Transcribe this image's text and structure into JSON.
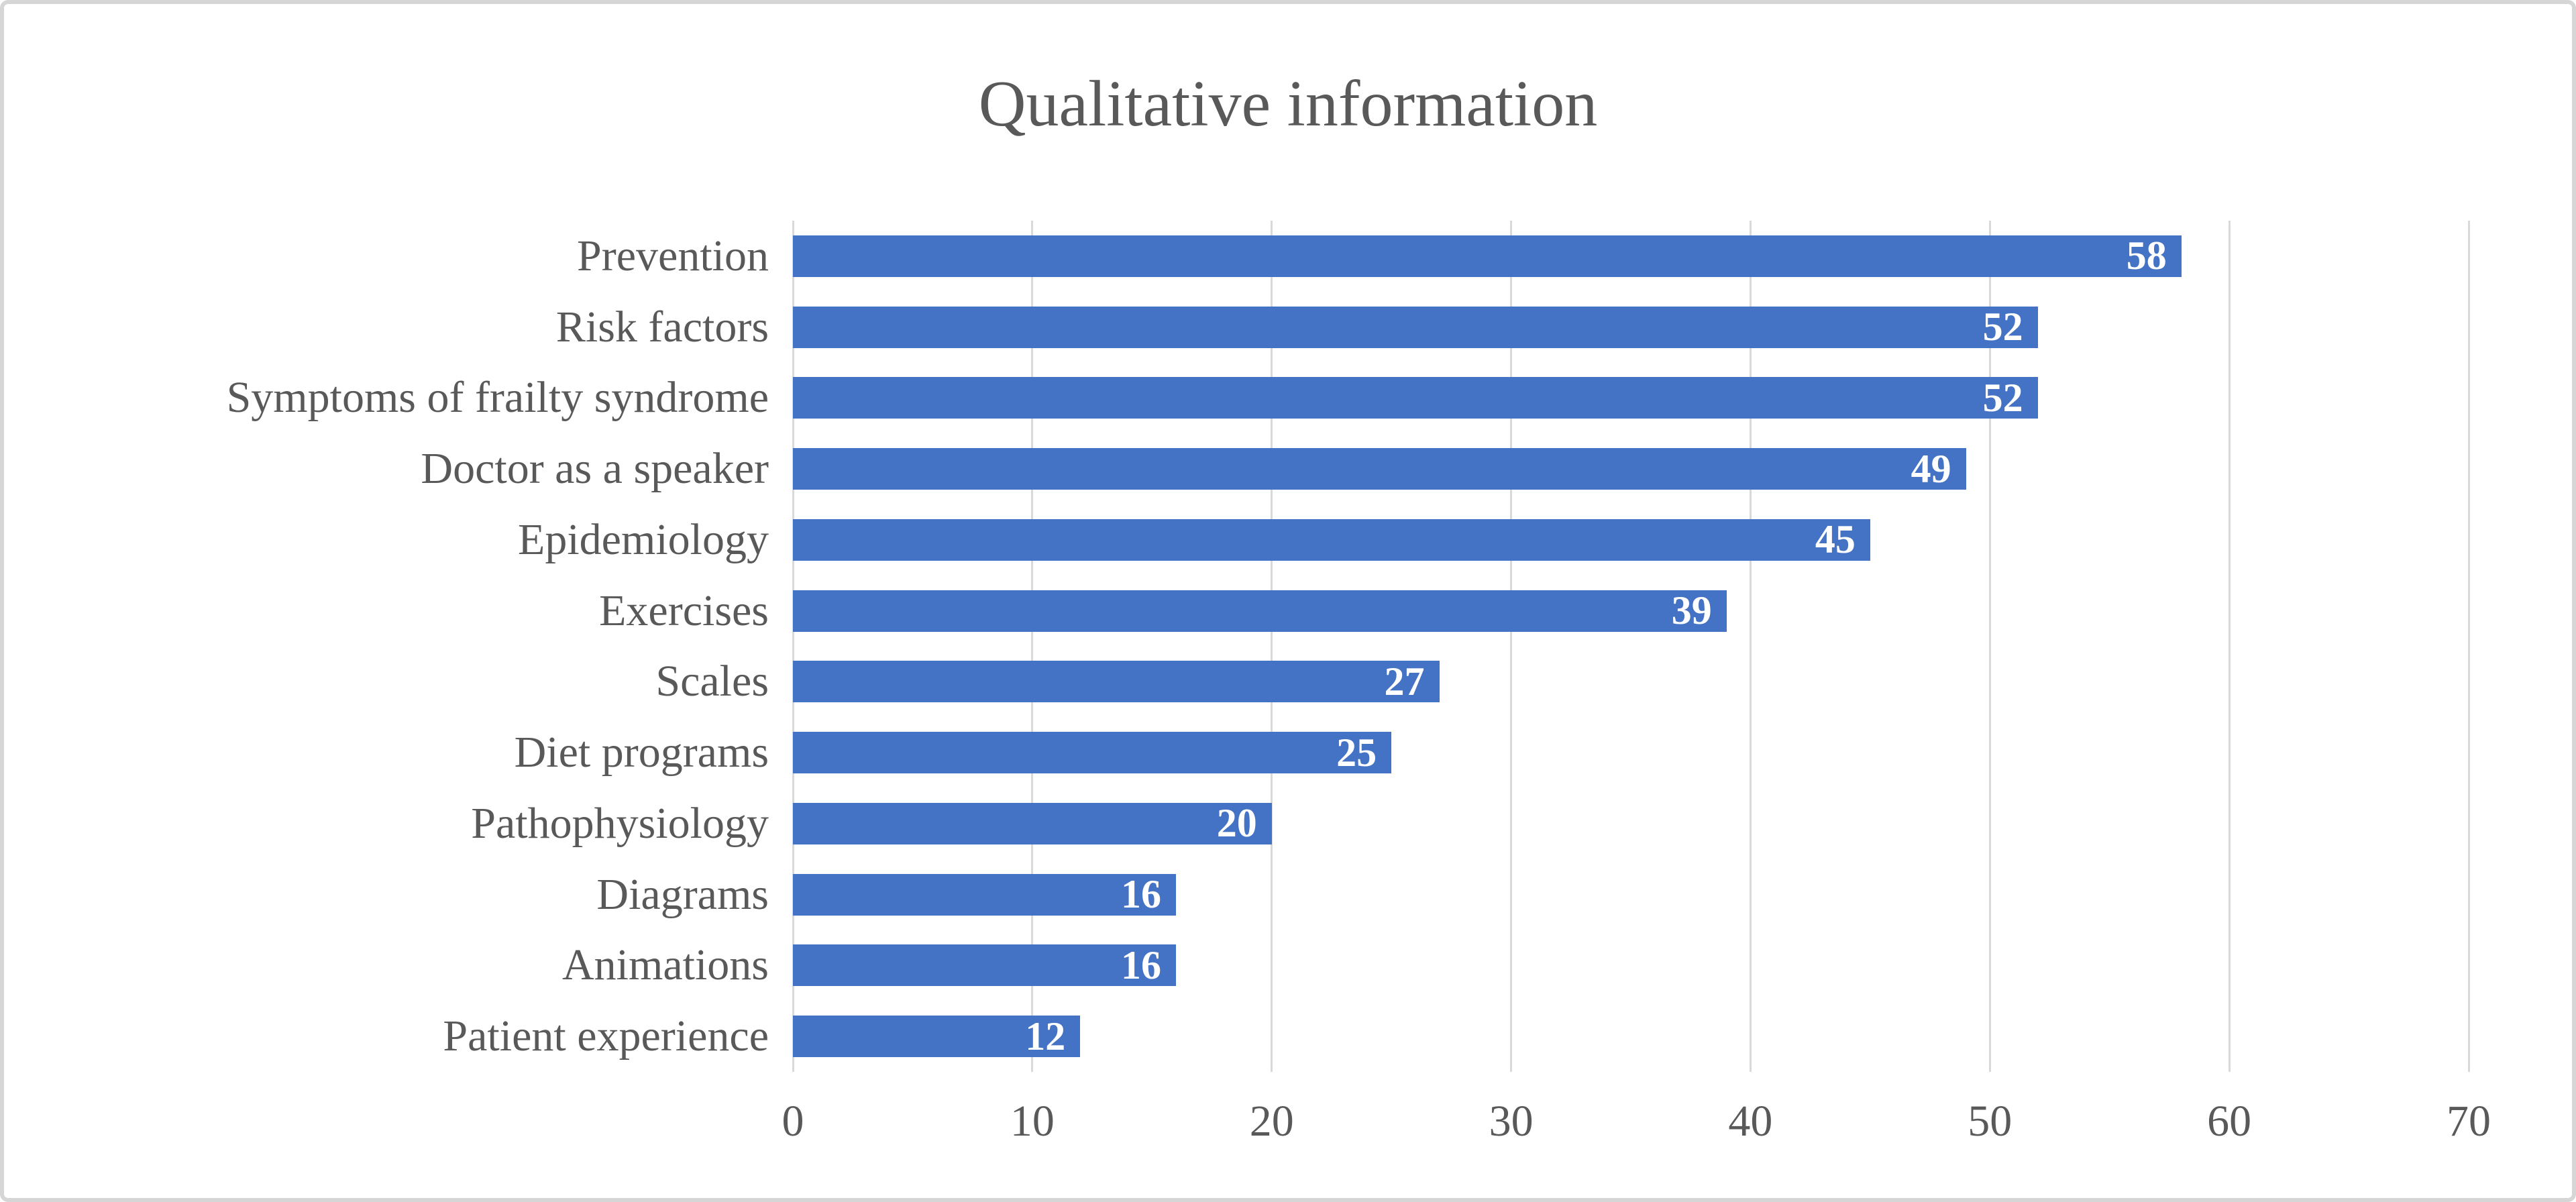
{
  "chart_data": {
    "type": "bar",
    "orientation": "horizontal",
    "title": "Qualitative information",
    "categories": [
      "Prevention",
      "Risk factors",
      "Symptoms of frailty syndrome",
      "Doctor as a speaker",
      "Epidemiology",
      "Exercises",
      "Scales",
      "Diet programs",
      "Pathophysiology",
      "Diagrams",
      "Animations",
      "Patient experience"
    ],
    "values": [
      58,
      52,
      52,
      49,
      45,
      39,
      27,
      25,
      20,
      16,
      16,
      12
    ],
    "xlabel": "",
    "ylabel": "",
    "xlim": [
      0,
      70
    ],
    "x_ticks": [
      0,
      10,
      20,
      30,
      40,
      50,
      60,
      70
    ],
    "grid": "vertical-major-only",
    "legend": "none",
    "data_labels": "inside-end",
    "colors": {
      "bar": "#4472C4",
      "value_label": "#FFFFFF",
      "text": "#595959",
      "gridline": "#D9D9D9",
      "frame_border": "#D6D6D6"
    }
  }
}
